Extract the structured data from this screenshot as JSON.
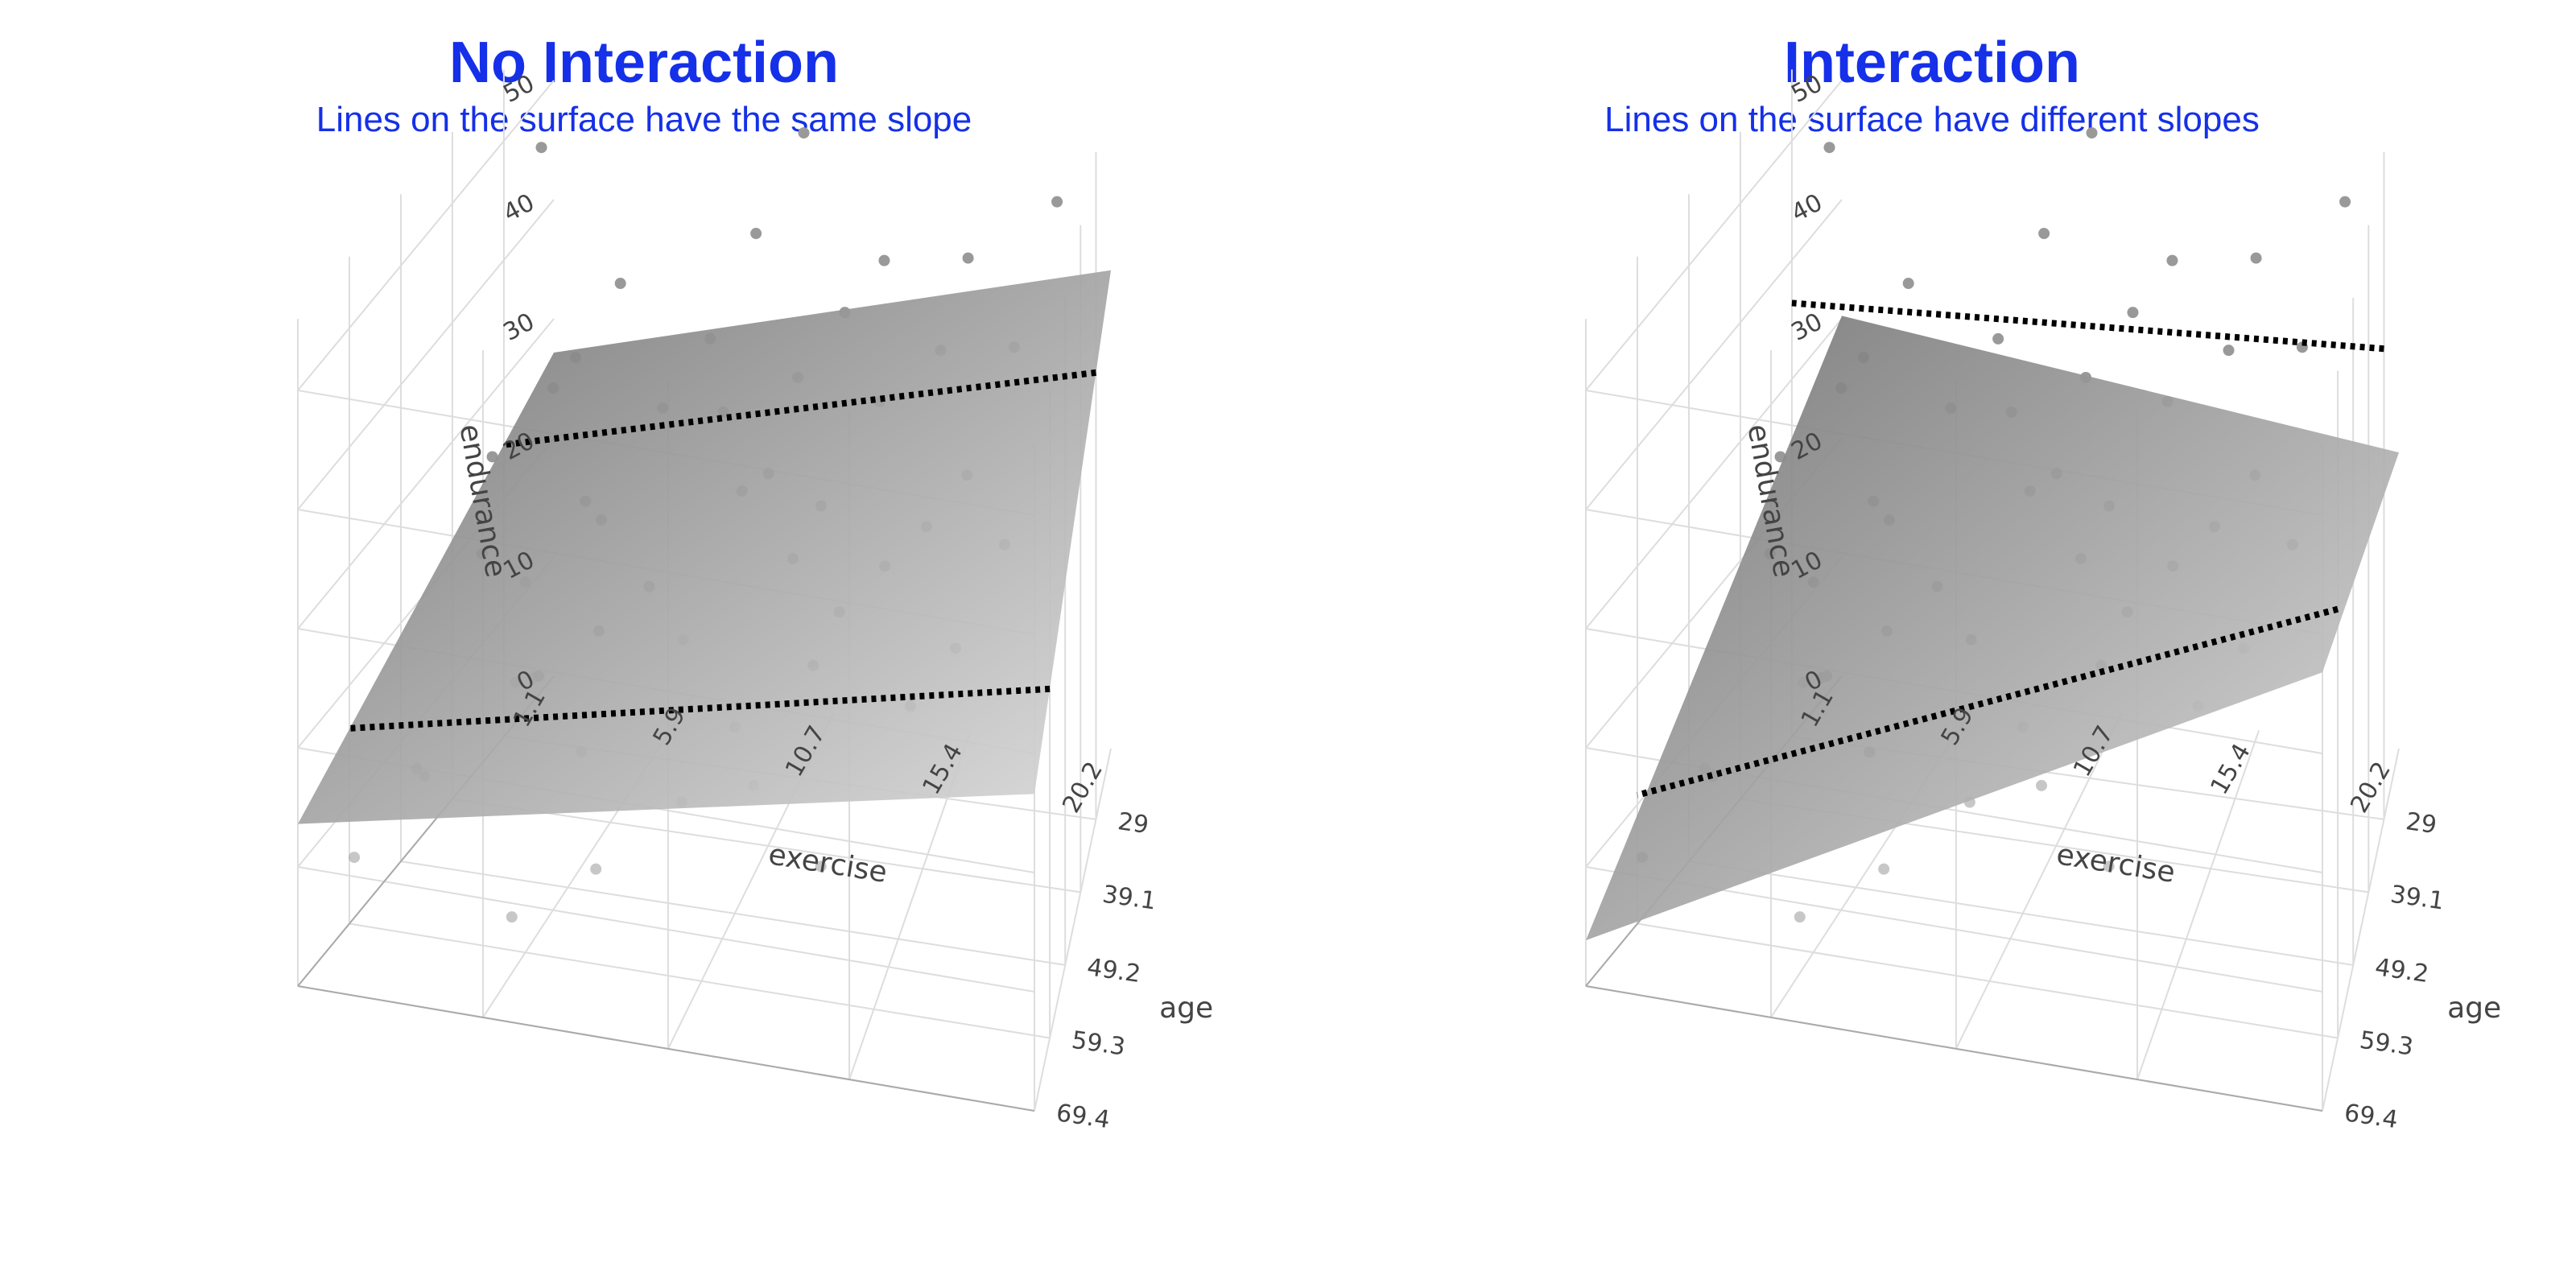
{
  "colors": {
    "title": "#1530e8",
    "points": "#999999",
    "grid": "#dddddd",
    "surface_dark": "#707070",
    "surface_light": "#d9d9d9",
    "dotted_line": "#000000"
  },
  "chart_data": [
    {
      "type": "surface3d",
      "title": "No Interaction",
      "subtitle": "Lines on the surface have the same slope",
      "xlabel": "exercise",
      "ylabel": "age",
      "zlabel": "endurance",
      "x_ticks": [
        "20.2",
        "15.4",
        "10.7",
        "5.9",
        "1.1"
      ],
      "y_ticks": [
        "29",
        "39.1",
        "49.2",
        "59.3",
        "69.4"
      ],
      "z_ticks": [
        "0",
        "10",
        "20",
        "30",
        "40",
        "50"
      ],
      "xlim": [
        1.1,
        20.2
      ],
      "ylim": [
        19.2,
        69.4
      ],
      "zlim": [
        0,
        56
      ],
      "surface": {
        "model": "endurance = 31.6 + 0.68*exercise - 0.27*age"
      },
      "lines": [
        {
          "age": 29,
          "x": [
            20.2,
            1.1
          ],
          "z": [
            37.5,
            24.5
          ]
        },
        {
          "age": 59.3,
          "x": [
            20.2,
            1.1
          ],
          "z": [
            29.3,
            16.4
          ]
        }
      ],
      "points": [
        {
          "x": 13.0,
          "y": 25.0,
          "z": 42.0
        },
        {
          "x": 9.0,
          "y": 27.0,
          "z": 44.0
        },
        {
          "x": 5.0,
          "y": 30.0,
          "z": 40.0
        },
        {
          "x": 16.0,
          "y": 28.0,
          "z": 45.0
        },
        {
          "x": 11.0,
          "y": 33.0,
          "z": 36.0
        },
        {
          "x": 7.0,
          "y": 35.0,
          "z": 33.0
        },
        {
          "x": 3.0,
          "y": 31.0,
          "z": 31.0
        },
        {
          "x": 14.0,
          "y": 38.0,
          "z": 38.0
        },
        {
          "x": 10.0,
          "y": 40.0,
          "z": 30.0
        },
        {
          "x": 6.0,
          "y": 42.0,
          "z": 27.0
        },
        {
          "x": 2.0,
          "y": 37.0,
          "z": 28.0
        },
        {
          "x": 18.0,
          "y": 36.0,
          "z": 43.0
        },
        {
          "x": 12.0,
          "y": 45.0,
          "z": 28.0
        },
        {
          "x": 8.0,
          "y": 47.0,
          "z": 25.0
        },
        {
          "x": 4.0,
          "y": 44.0,
          "z": 22.0
        },
        {
          "x": 15.0,
          "y": 49.0,
          "z": 31.0
        },
        {
          "x": 17.0,
          "y": 43.0,
          "z": 36.0
        },
        {
          "x": 9.5,
          "y": 52.0,
          "z": 24.0
        },
        {
          "x": 5.5,
          "y": 54.0,
          "z": 20.0
        },
        {
          "x": 13.5,
          "y": 56.0,
          "z": 26.0
        },
        {
          "x": 11.5,
          "y": 58.0,
          "z": 21.0
        },
        {
          "x": 7.5,
          "y": 60.0,
          "z": 18.0
        },
        {
          "x": 3.5,
          "y": 62.0,
          "z": 15.0
        },
        {
          "x": 16.5,
          "y": 61.0,
          "z": 27.0
        },
        {
          "x": 19.0,
          "y": 30.0,
          "z": 52.0
        },
        {
          "x": 1.5,
          "y": 24.0,
          "z": 47.0
        },
        {
          "x": 10.0,
          "y": 22.0,
          "z": 50.0
        },
        {
          "x": 12.5,
          "y": 64.0,
          "z": 20.0
        },
        {
          "x": 8.5,
          "y": 66.0,
          "z": 12.0
        },
        {
          "x": 6.5,
          "y": 68.0,
          "z": 8.0
        },
        {
          "x": 14.5,
          "y": 67.0,
          "z": 16.0
        },
        {
          "x": 4.5,
          "y": 50.0,
          "z": 17.0
        },
        {
          "x": 2.5,
          "y": 56.0,
          "z": 12.0
        },
        {
          "x": 18.5,
          "y": 50.0,
          "z": 35.0
        },
        {
          "x": 17.5,
          "y": 57.0,
          "z": 30.0
        },
        {
          "x": 9.0,
          "y": 36.0,
          "z": 34.0
        },
        {
          "x": 11.0,
          "y": 42.0,
          "z": 33.0
        },
        {
          "x": 13.0,
          "y": 47.0,
          "z": 34.0
        },
        {
          "x": 7.0,
          "y": 51.0,
          "z": 23.0
        },
        {
          "x": 5.0,
          "y": 38.0,
          "z": 26.0
        },
        {
          "x": 15.5,
          "y": 33.0,
          "z": 40.0
        },
        {
          "x": 3.0,
          "y": 46.0,
          "z": 25.0
        },
        {
          "x": 12.0,
          "y": 28.0,
          "z": 39.0
        },
        {
          "x": 8.0,
          "y": 31.0,
          "z": 37.0
        },
        {
          "x": 6.0,
          "y": 57.0,
          "z": 22.0
        },
        {
          "x": 10.5,
          "y": 63.0,
          "z": 17.0
        },
        {
          "x": 14.0,
          "y": 53.0,
          "z": 29.0
        },
        {
          "x": 16.0,
          "y": 46.0,
          "z": 33.0
        },
        {
          "x": 4.0,
          "y": 33.0,
          "z": 35.0
        },
        {
          "x": 2.0,
          "y": 65.0,
          "z": 9.0
        }
      ]
    },
    {
      "type": "surface3d",
      "title": "Interaction",
      "subtitle": "Lines on the surface have different slopes",
      "xlabel": "exercise",
      "ylabel": "age",
      "zlabel": "endurance",
      "x_ticks": [
        "20.2",
        "15.4",
        "10.7",
        "5.9",
        "1.1"
      ],
      "y_ticks": [
        "29",
        "39.1",
        "49.2",
        "59.3",
        "69.4"
      ],
      "z_ticks": [
        "0",
        "10",
        "20",
        "30",
        "40",
        "50"
      ],
      "xlim": [
        1.1,
        20.2
      ],
      "ylim": [
        19.2,
        69.4
      ],
      "zlim": [
        0,
        56
      ],
      "surface": {
        "model": "endurance = 41.5 - 1.05*exercise - 0.57*age + 0.04*exercise*age"
      },
      "lines": [
        {
          "age": 29,
          "x": [
            20.2,
            1.1
          ],
          "z": [
            39.5,
            36.4
          ]
        },
        {
          "age": 59.3,
          "x": [
            20.2,
            1.1
          ],
          "z": [
            36.0,
            10.8
          ]
        }
      ],
      "points": [
        {
          "x": 13.0,
          "y": 25.0,
          "z": 42.0
        },
        {
          "x": 9.0,
          "y": 27.0,
          "z": 44.0
        },
        {
          "x": 5.0,
          "y": 30.0,
          "z": 40.0
        },
        {
          "x": 16.0,
          "y": 28.0,
          "z": 45.0
        },
        {
          "x": 11.0,
          "y": 33.0,
          "z": 36.0
        },
        {
          "x": 7.0,
          "y": 35.0,
          "z": 33.0
        },
        {
          "x": 3.0,
          "y": 31.0,
          "z": 31.0
        },
        {
          "x": 14.0,
          "y": 38.0,
          "z": 38.0
        },
        {
          "x": 10.0,
          "y": 40.0,
          "z": 30.0
        },
        {
          "x": 6.0,
          "y": 42.0,
          "z": 27.0
        },
        {
          "x": 2.0,
          "y": 37.0,
          "z": 28.0
        },
        {
          "x": 18.0,
          "y": 36.0,
          "z": 43.0
        },
        {
          "x": 12.0,
          "y": 45.0,
          "z": 28.0
        },
        {
          "x": 8.0,
          "y": 47.0,
          "z": 25.0
        },
        {
          "x": 4.0,
          "y": 44.0,
          "z": 22.0
        },
        {
          "x": 15.0,
          "y": 49.0,
          "z": 31.0
        },
        {
          "x": 17.0,
          "y": 43.0,
          "z": 36.0
        },
        {
          "x": 9.5,
          "y": 52.0,
          "z": 24.0
        },
        {
          "x": 5.5,
          "y": 54.0,
          "z": 20.0
        },
        {
          "x": 13.5,
          "y": 56.0,
          "z": 26.0
        },
        {
          "x": 11.5,
          "y": 58.0,
          "z": 21.0
        },
        {
          "x": 7.5,
          "y": 60.0,
          "z": 18.0
        },
        {
          "x": 3.5,
          "y": 62.0,
          "z": 15.0
        },
        {
          "x": 16.5,
          "y": 61.0,
          "z": 27.0
        },
        {
          "x": 19.0,
          "y": 30.0,
          "z": 52.0
        },
        {
          "x": 1.5,
          "y": 24.0,
          "z": 47.0
        },
        {
          "x": 10.0,
          "y": 22.0,
          "z": 50.0
        },
        {
          "x": 12.5,
          "y": 64.0,
          "z": 20.0
        },
        {
          "x": 8.5,
          "y": 66.0,
          "z": 12.0
        },
        {
          "x": 6.5,
          "y": 68.0,
          "z": 8.0
        },
        {
          "x": 14.5,
          "y": 67.0,
          "z": 16.0
        },
        {
          "x": 4.5,
          "y": 50.0,
          "z": 17.0
        },
        {
          "x": 2.5,
          "y": 56.0,
          "z": 12.0
        },
        {
          "x": 18.5,
          "y": 50.0,
          "z": 35.0
        },
        {
          "x": 17.5,
          "y": 57.0,
          "z": 30.0
        },
        {
          "x": 9.0,
          "y": 36.0,
          "z": 34.0
        },
        {
          "x": 11.0,
          "y": 42.0,
          "z": 33.0
        },
        {
          "x": 13.0,
          "y": 47.0,
          "z": 34.0
        },
        {
          "x": 7.0,
          "y": 51.0,
          "z": 23.0
        },
        {
          "x": 5.0,
          "y": 38.0,
          "z": 26.0
        },
        {
          "x": 15.5,
          "y": 33.0,
          "z": 40.0
        },
        {
          "x": 3.0,
          "y": 46.0,
          "z": 25.0
        },
        {
          "x": 12.0,
          "y": 28.0,
          "z": 39.0
        },
        {
          "x": 8.0,
          "y": 31.0,
          "z": 37.0
        },
        {
          "x": 6.0,
          "y": 57.0,
          "z": 22.0
        },
        {
          "x": 10.5,
          "y": 63.0,
          "z": 17.0
        },
        {
          "x": 14.0,
          "y": 53.0,
          "z": 29.0
        },
        {
          "x": 16.0,
          "y": 46.0,
          "z": 33.0
        },
        {
          "x": 4.0,
          "y": 33.0,
          "z": 35.0
        },
        {
          "x": 2.0,
          "y": 65.0,
          "z": 9.0
        }
      ]
    }
  ]
}
